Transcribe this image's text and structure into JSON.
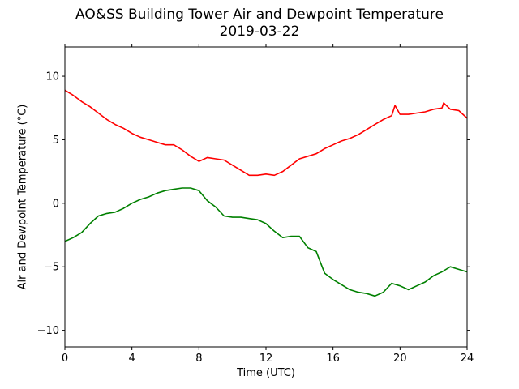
{
  "chart_data": {
    "type": "line",
    "title": "AO&SS Building Tower Air and Dewpoint Temperature",
    "subtitle": "2019-03-22",
    "xlabel": "Time (UTC)",
    "ylabel": "Air and Dewpoint Temperature (°C)",
    "xlim": [
      0,
      24
    ],
    "ylim": [
      -11.3,
      12.3
    ],
    "xticks": [
      0,
      4,
      8,
      12,
      16,
      20,
      24
    ],
    "xtick_labels": [
      "0",
      "4",
      "8",
      "12",
      "16",
      "20",
      "24"
    ],
    "yticks": [
      10,
      5,
      0,
      -5,
      -10
    ],
    "ytick_labels": [
      "10",
      "5",
      "0",
      "−5",
      "−10"
    ],
    "grid": false,
    "series": [
      {
        "color": "#ff0000",
        "x": [
          0,
          0.5,
          1,
          1.5,
          2,
          2.5,
          3,
          3.5,
          4,
          4.5,
          5,
          5.5,
          6,
          6.5,
          7,
          7.5,
          8,
          8.5,
          9,
          9.5,
          10,
          10.5,
          11,
          11.5,
          12,
          12.5,
          13,
          13.5,
          14,
          14.5,
          15,
          15.5,
          16,
          16.5,
          17,
          17.5,
          18,
          18.5,
          19,
          19.5,
          19.7,
          20,
          20.5,
          21,
          21.5,
          22,
          22.5,
          22.6,
          23,
          23.5,
          24
        ],
        "y": [
          8.9,
          8.5,
          8.0,
          7.6,
          7.1,
          6.6,
          6.2,
          5.9,
          5.5,
          5.2,
          5.0,
          4.8,
          4.6,
          4.6,
          4.2,
          3.7,
          3.3,
          3.6,
          3.5,
          3.4,
          3.0,
          2.6,
          2.2,
          2.2,
          2.3,
          2.2,
          2.5,
          3.0,
          3.5,
          3.7,
          3.9,
          4.3,
          4.6,
          4.9,
          5.1,
          5.4,
          5.8,
          6.2,
          6.6,
          6.9,
          7.7,
          7.0,
          7.0,
          7.1,
          7.2,
          7.4,
          7.5,
          7.9,
          7.4,
          7.3,
          6.7
        ]
      },
      {
        "color": "#008000",
        "x": [
          0,
          0.5,
          1,
          1.5,
          2,
          2.5,
          3,
          3.5,
          4,
          4.5,
          5,
          5.5,
          6,
          6.5,
          7,
          7.5,
          8,
          8.5,
          9,
          9.5,
          10,
          10.5,
          11,
          11.5,
          12,
          12.5,
          13,
          13.5,
          14,
          14.5,
          15,
          15.5,
          16,
          16.5,
          17,
          17.5,
          18,
          18.5,
          19,
          19.5,
          20,
          20.5,
          21,
          21.5,
          22,
          22.5,
          23,
          23.5,
          24
        ],
        "y": [
          -3.0,
          -2.7,
          -2.3,
          -1.6,
          -1.0,
          -0.8,
          -0.7,
          -0.4,
          0.0,
          0.3,
          0.5,
          0.8,
          1.0,
          1.1,
          1.2,
          1.2,
          1.0,
          0.2,
          -0.3,
          -1.0,
          -1.1,
          -1.1,
          -1.2,
          -1.3,
          -1.6,
          -2.2,
          -2.7,
          -2.6,
          -2.6,
          -3.5,
          -3.8,
          -5.5,
          -6.0,
          -6.4,
          -6.8,
          -7.0,
          -7.1,
          -7.3,
          -7.0,
          -6.3,
          -6.5,
          -6.8,
          -6.5,
          -6.2,
          -5.7,
          -5.4,
          -5.0,
          -5.2,
          -5.4
        ]
      }
    ]
  }
}
